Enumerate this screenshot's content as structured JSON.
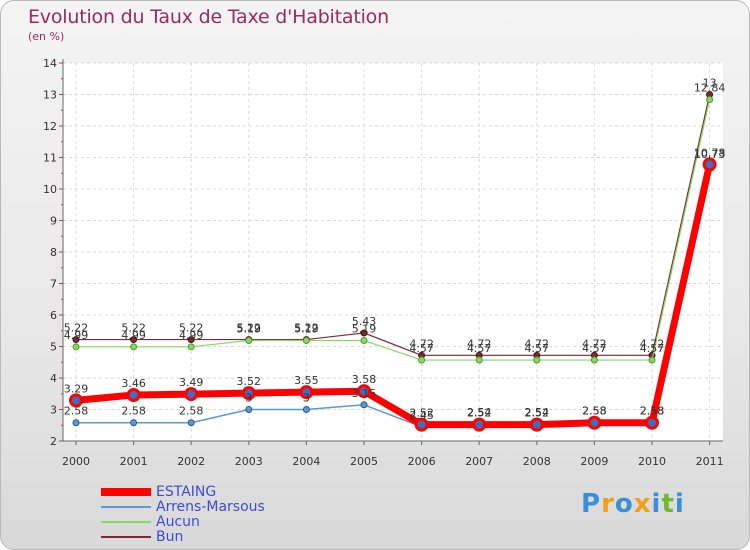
{
  "header": {
    "title": "Evolution du Taux de Taxe d'Habitation",
    "unit": "(en %)"
  },
  "chart_data": {
    "type": "line",
    "title": "Evolution du Taux de Taxe d'Habitation",
    "ylabel": "(en %)",
    "xlabel": "",
    "ylim": [
      2,
      14
    ],
    "yticks": [
      2,
      3,
      4,
      5,
      6,
      7,
      8,
      9,
      10,
      11,
      12,
      13,
      14
    ],
    "categories": [
      "2000",
      "2001",
      "2002",
      "2003",
      "2004",
      "2005",
      "2006",
      "2007",
      "2008",
      "2009",
      "2010",
      "2011"
    ],
    "series": [
      {
        "name": "ESTAING",
        "color": "#ff0000",
        "values": [
          3.29,
          3.46,
          3.49,
          3.52,
          3.55,
          3.58,
          2.52,
          2.52,
          2.52,
          2.58,
          2.58,
          10.78
        ],
        "labels": [
          "3.29",
          "3.46",
          "3.49",
          "3.52",
          "3.55",
          "3.58",
          "2.52",
          "2.52",
          "2.52",
          "2.58",
          "2.58",
          "10.78"
        ]
      },
      {
        "name": "Arrens-Marsous",
        "color": "#5a9ad0",
        "values": [
          2.58,
          2.58,
          2.58,
          3,
          3,
          3.15,
          2.45,
          2.54,
          2.54,
          2.58,
          2.58,
          10.73
        ],
        "labels": [
          "2.58",
          "2.58",
          "2.58",
          "3",
          "3",
          "3.15",
          "2.45",
          "2.54",
          "2.54",
          "2.58",
          "2.58",
          "10.73"
        ]
      },
      {
        "name": "Aucun",
        "color": "#88d860",
        "values": [
          4.99,
          4.99,
          4.99,
          5.19,
          5.19,
          5.19,
          4.57,
          4.57,
          4.57,
          4.57,
          4.57,
          12.84
        ],
        "labels": [
          "4.99",
          "4.99",
          "4.99",
          "5.19",
          "5.19",
          "5.19",
          "4.57",
          "4.57",
          "4.57",
          "4.57",
          "4.57",
          "12.84"
        ]
      },
      {
        "name": "Bun",
        "color": "#7a2a34",
        "values": [
          5.22,
          5.22,
          5.22,
          5.22,
          5.22,
          5.43,
          4.72,
          4.72,
          4.72,
          4.72,
          4.72,
          13
        ],
        "labels": [
          "5.22",
          "5.22",
          "5.22",
          "5.22",
          "5.22",
          "5.43",
          "4.72",
          "4.72",
          "4.72",
          "4.72",
          "4.72",
          "13"
        ]
      }
    ],
    "legend_position": "bottom-left"
  },
  "logo": {
    "letters": [
      "P",
      "r",
      "o",
      "x",
      "i",
      "t",
      "i"
    ],
    "colors": [
      "#3a8fd8",
      "#f0a018",
      "#3a8fd8",
      "#f0a018",
      "#3a8fd8",
      "#70b830",
      "#3a8fd8"
    ]
  }
}
